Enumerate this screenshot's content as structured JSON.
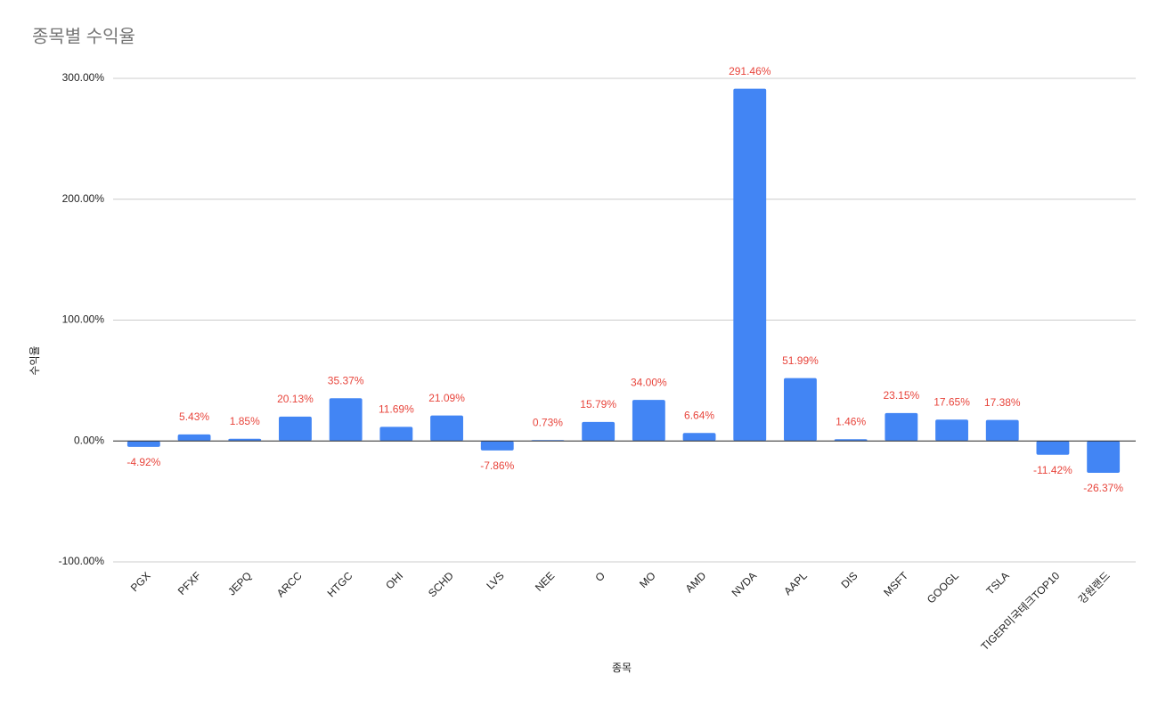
{
  "chart_data": {
    "type": "bar",
    "title": "종목별 수익율",
    "x_label": "종목",
    "y_label": "수익율",
    "categories": [
      "PGX",
      "PFXF",
      "JEPQ",
      "ARCC",
      "HTGC",
      "OHI",
      "SCHD",
      "LVS",
      "NEE",
      "O",
      "MO",
      "AMD",
      "NVDA",
      "AAPL",
      "DIS",
      "MSFT",
      "GOOGL",
      "TSLA",
      "TIGER미국테크TOP10",
      "강원랜드"
    ],
    "values": [
      -4.92,
      5.43,
      1.85,
      20.13,
      35.37,
      11.69,
      21.09,
      -7.86,
      0.73,
      15.79,
      34.0,
      6.64,
      291.46,
      51.99,
      1.46,
      23.15,
      17.65,
      17.38,
      -11.42,
      -26.37
    ],
    "value_labels": [
      "-4.92%",
      "5.43%",
      "1.85%",
      "20.13%",
      "35.37%",
      "11.69%",
      "21.09%",
      "-7.86%",
      "0.73%",
      "15.79%",
      "34.00%",
      "6.64%",
      "291.46%",
      "51.99%",
      "1.46%",
      "23.15%",
      "17.65%",
      "17.38%",
      "-11.42%",
      "-26.37%"
    ],
    "color": "#4285f4",
    "label_color": "#e8453c",
    "ylim": [
      -100,
      300
    ],
    "yticks": [
      {
        "value": -100,
        "label": "-100.00%"
      },
      {
        "value": 0,
        "label": "0.00%"
      },
      {
        "value": 100,
        "label": "100.00%"
      },
      {
        "value": 200,
        "label": "200.00%"
      },
      {
        "value": 300,
        "label": "300.00%"
      }
    ],
    "grid": true
  }
}
